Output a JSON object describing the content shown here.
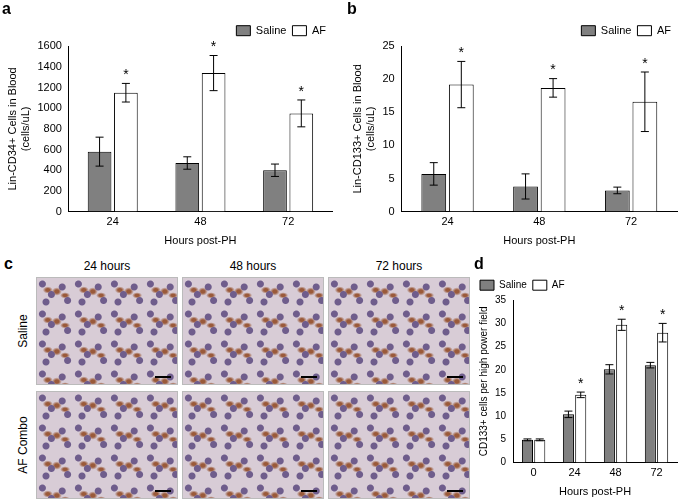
{
  "chart_data": [
    {
      "type": "bar",
      "title": "a",
      "categories": [
        "24",
        "48",
        "72"
      ],
      "x_label": "Hours post-PH",
      "y_label": [
        "Lin-CD34+ Cells in Blood",
        "(cells/uL)"
      ],
      "series": [
        {
          "name": "Saline",
          "color": "#808080",
          "values": [
            580,
            470,
            400
          ],
          "errors": [
            140,
            60,
            60
          ],
          "annotations": [
            null,
            null,
            null
          ]
        },
        {
          "name": "AF",
          "color": "#ffffff",
          "values": [
            1150,
            1340,
            950
          ],
          "errors": [
            90,
            170,
            130
          ],
          "annotations": [
            "*",
            "*",
            "*"
          ]
        }
      ],
      "ylim": [
        0,
        1600
      ],
      "yticks": [
        0,
        200,
        400,
        600,
        800,
        1000,
        1200,
        1400,
        1600
      ],
      "grid": false,
      "legend": "top-right"
    },
    {
      "type": "bar",
      "title": "b",
      "categories": [
        "24",
        "48",
        "72"
      ],
      "x_label": "Hours post-PH",
      "y_label": [
        "Lin-CD133+ Cells in Blood",
        "(cells/uL)"
      ],
      "series": [
        {
          "name": "Saline",
          "color": "#808080",
          "values": [
            5.7,
            3.8,
            3.2
          ],
          "errors": [
            1.7,
            1.9,
            0.5
          ],
          "annotations": [
            null,
            null,
            null
          ]
        },
        {
          "name": "AF",
          "color": "#ffffff",
          "values": [
            19.2,
            18.7,
            16.6
          ],
          "errors": [
            3.5,
            1.4,
            4.5
          ],
          "annotations": [
            "*",
            "*",
            "*"
          ]
        }
      ],
      "ylim": [
        0,
        25
      ],
      "yticks": [
        0,
        5,
        10,
        15,
        20,
        25
      ],
      "grid": false,
      "legend": "top-right"
    },
    {
      "type": "bar",
      "title": "d",
      "categories": [
        "0",
        "24",
        "48",
        "72"
      ],
      "x_label": "Hours post-PH",
      "y_label": "CD133+ cells per high power field",
      "series": [
        {
          "name": "Saline",
          "color": "#808080",
          "values": [
            4.9,
            10.4,
            20.1,
            21.0
          ],
          "errors": [
            0.2,
            0.7,
            1.0,
            0.6
          ],
          "annotations": [
            null,
            null,
            null,
            null
          ]
        },
        {
          "name": "AF",
          "color": "#ffffff",
          "values": [
            4.9,
            14.6,
            29.7,
            28.0
          ],
          "errors": [
            0.2,
            0.6,
            1.2,
            2.0
          ],
          "annotations": [
            null,
            "*",
            "*",
            "*"
          ]
        }
      ],
      "ylim": [
        0,
        35
      ],
      "yticks": [
        0,
        5,
        10,
        15,
        20,
        25,
        30,
        35
      ],
      "grid": false,
      "legend": "top-left"
    }
  ],
  "image_panel": {
    "label": "c",
    "columns": [
      "24 hours",
      "48 hours",
      "72 hours"
    ],
    "rows": [
      "Saline",
      "AF Combo"
    ]
  }
}
